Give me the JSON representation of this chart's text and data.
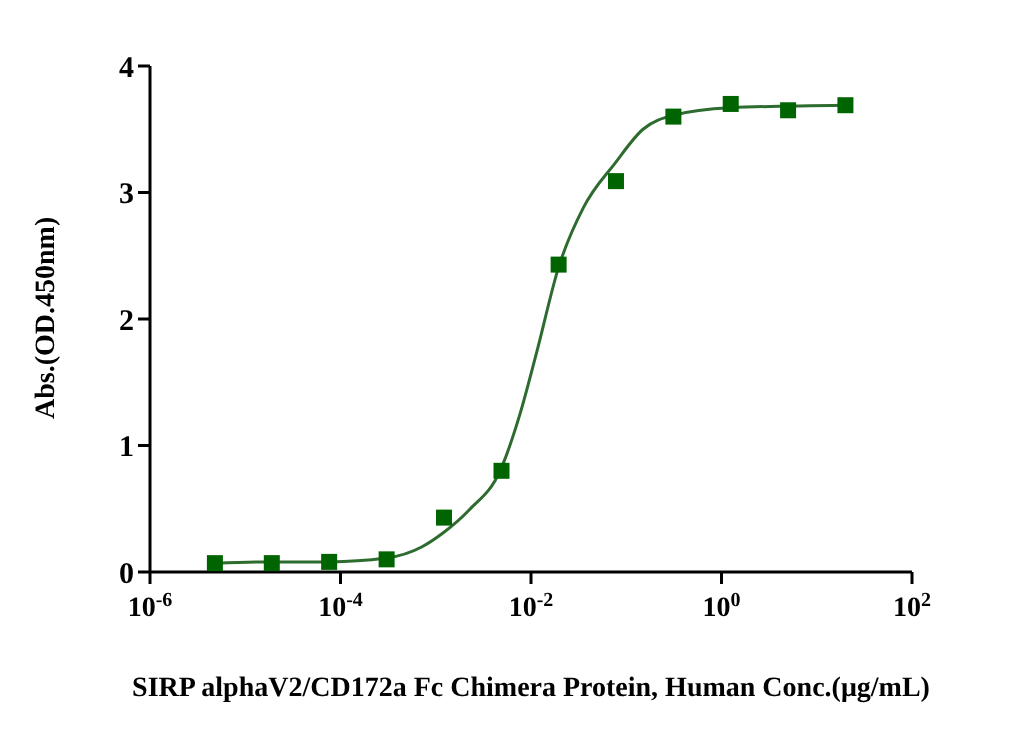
{
  "chart_data": {
    "type": "scatter",
    "xlabel": "SIRP alphaV2/CD172a Fc Chimera Protein, Human Conc.(μg/mL)",
    "ylabel": "Abs.(OD.450nm)",
    "log": "x",
    "grid": false,
    "legend": false,
    "marker": "square",
    "xlim": [
      1e-06,
      100
    ],
    "ylim": [
      0,
      4
    ],
    "xticks": [
      {
        "value": 1e-06,
        "label": "10$^{-6}$"
      },
      {
        "value": 0.0001,
        "label": "10$^{-4}$"
      },
      {
        "value": 0.01,
        "label": "10$^{-2}$"
      },
      {
        "value": 1,
        "label": "10$^{0}$"
      },
      {
        "value": 100,
        "label": "10$^{2}$"
      }
    ],
    "yticks": [
      0,
      1,
      2,
      3,
      4
    ],
    "series": [
      {
        "color": "#006400",
        "x": [
          4.8e-06,
          1.9e-05,
          7.6e-05,
          0.000305,
          0.00122,
          0.0049,
          0.0195,
          0.078,
          0.3125,
          1.25,
          5,
          20
        ],
        "values": [
          0.07,
          0.07,
          0.08,
          0.1,
          0.43,
          0.8,
          2.43,
          3.09,
          3.6,
          3.7,
          3.65,
          3.69
        ]
      },
      {
        "type": "line",
        "color": "#2e6b2e",
        "marker": "none",
        "x": [
          4.9e-06,
          1.78e-05,
          7.6e-05,
          0.0003,
          0.00072,
          0.0012,
          0.00224,
          0.0048,
          0.0076,
          0.0115,
          0.0195,
          0.0355,
          0.076,
          0.15,
          0.31,
          1.23,
          19.5
        ],
        "values": [
          0.07,
          0.08,
          0.08,
          0.11,
          0.2,
          0.31,
          0.49,
          0.81,
          1.24,
          1.74,
          2.41,
          2.88,
          3.23,
          3.5,
          3.61,
          3.67,
          3.69
        ]
      }
    ]
  }
}
